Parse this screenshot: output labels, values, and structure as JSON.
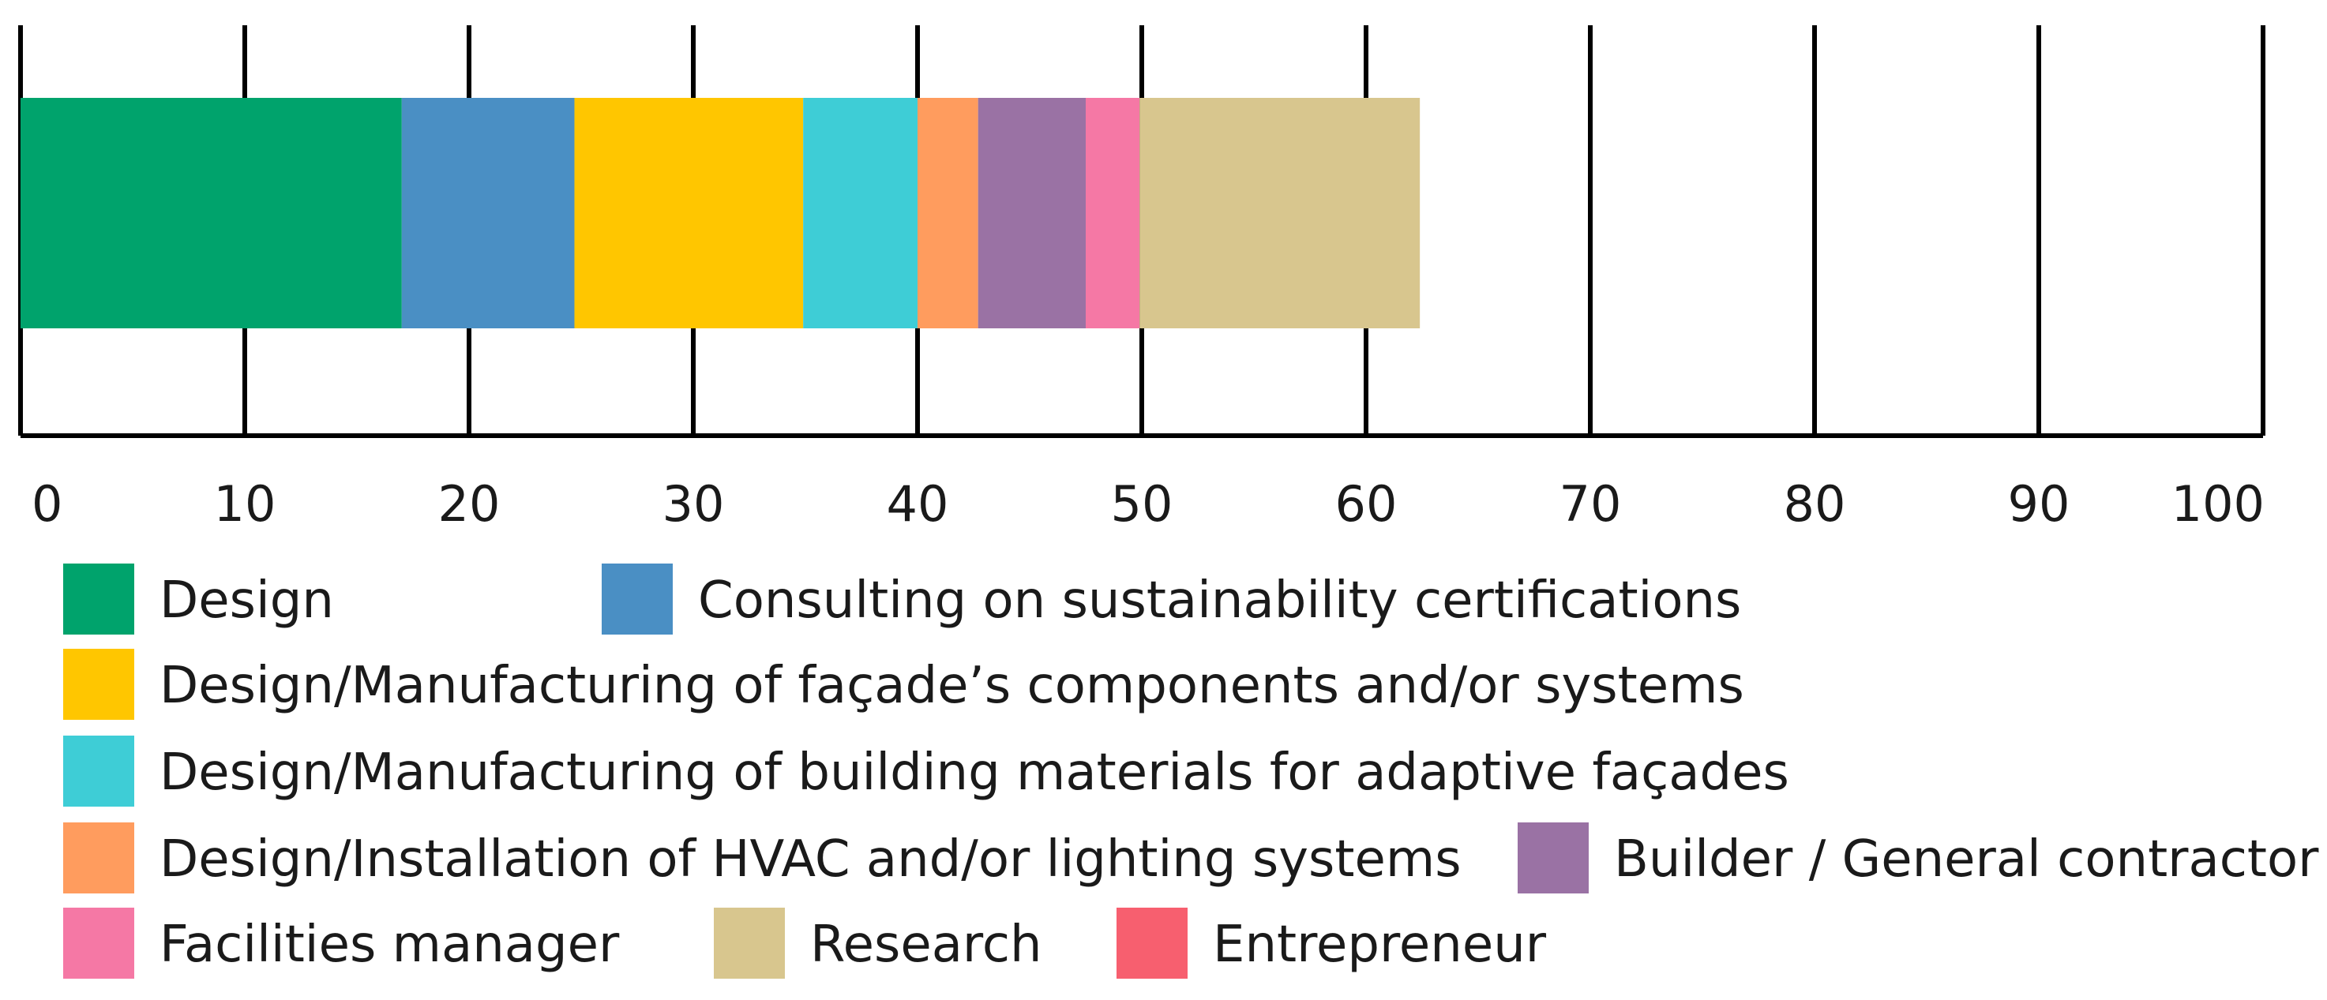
{
  "chart_data": {
    "type": "bar",
    "orientation": "horizontal",
    "stacked": true,
    "xlim": [
      0,
      100
    ],
    "xticks": [
      "0",
      "10",
      "20",
      "30",
      "40",
      "50",
      "60",
      "70",
      "80",
      "90",
      "100"
    ],
    "grid": true,
    "legend_position": "bottom",
    "series": [
      {
        "name": "Design",
        "value": 17.0,
        "color": "#00A36C"
      },
      {
        "name": "Consulting on sustainability certifications",
        "value": 7.7,
        "color": "#4A8FC4"
      },
      {
        "name": "Design/Manufacturing of façade’s components and/or systems",
        "value": 10.2,
        "color": "#FFC600"
      },
      {
        "name": "Design/Manufacturing of building materials for adaptive façades",
        "value": 5.1,
        "color": "#3ECDD6"
      },
      {
        "name": "Design/Installation of HVAC and/or lighting systems",
        "value": 2.7,
        "color": "#FF9C5E"
      },
      {
        "name": "Builder / General contractor",
        "value": 4.8,
        "color": "#9A72A4"
      },
      {
        "name": "Facilities manager",
        "value": 2.4,
        "color": "#F578A5"
      },
      {
        "name": "Research",
        "value": 12.5,
        "color": "#D8C68E"
      },
      {
        "name": "Entrepreneur",
        "value": 0,
        "color": "#F75F6F"
      }
    ]
  }
}
